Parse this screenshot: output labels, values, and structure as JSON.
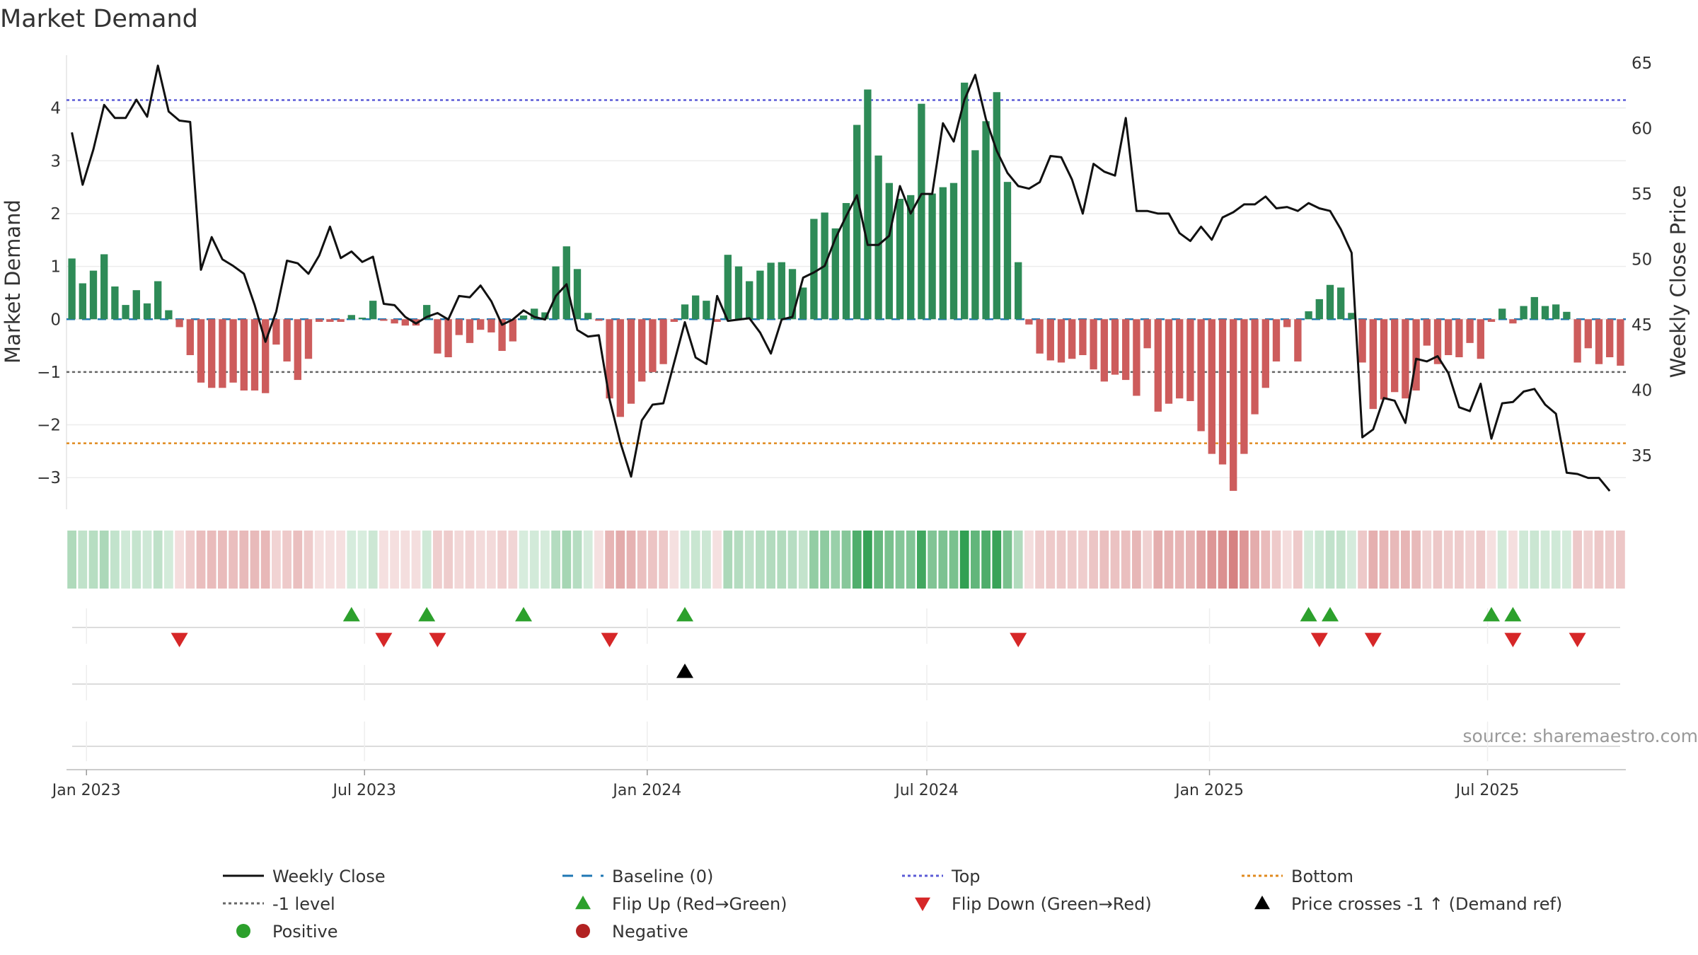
{
  "chart_data": {
    "type": "bar",
    "title": "Market Demand",
    "ylabel_left": "Market Demand",
    "ylabel_right": "Weekly Close Price",
    "source": "source: sharemaestro.com",
    "x_start": "2022-12-19",
    "x_end": "2025-09-29",
    "weeks": 146,
    "ylim_left": [
      -3.6,
      5.0
    ],
    "ylim_right": [
      30.9,
      65.6
    ],
    "left_ticks": [
      {
        "v": 4,
        "label": "4"
      },
      {
        "v": 3,
        "label": "3"
      },
      {
        "v": 2,
        "label": "2"
      },
      {
        "v": 1,
        "label": "1"
      },
      {
        "v": 0,
        "label": "0"
      },
      {
        "v": -1,
        "label": "−1"
      },
      {
        "v": -2,
        "label": "−2"
      },
      {
        "v": -3,
        "label": "−3"
      }
    ],
    "right_ticks": [
      {
        "v": 65,
        "label": "65"
      },
      {
        "v": 60,
        "label": "60"
      },
      {
        "v": 55,
        "label": "55"
      },
      {
        "v": 50,
        "label": "50"
      },
      {
        "v": 45,
        "label": "45"
      },
      {
        "v": 40,
        "label": "40"
      },
      {
        "v": 35,
        "label": "35"
      }
    ],
    "x_ticks": [
      {
        "date": "2023-01-01",
        "label": "Jan 2023"
      },
      {
        "date": "2023-07-01",
        "label": "Jul 2023"
      },
      {
        "date": "2024-01-01",
        "label": "Jan 2024"
      },
      {
        "date": "2024-07-01",
        "label": "Jul 2024"
      },
      {
        "date": "2025-01-01",
        "label": "Jan 2025"
      },
      {
        "date": "2025-07-01",
        "label": "Jul 2025"
      }
    ],
    "reference_lines": {
      "top": 4.15,
      "minus_one": -1,
      "bottom": -2.35,
      "baseline": 0
    },
    "demand": [
      1.15,
      0.68,
      0.92,
      1.23,
      0.62,
      0.27,
      0.55,
      0.3,
      0.72,
      0.17,
      -0.15,
      -0.68,
      -1.2,
      -1.3,
      -1.3,
      -1.2,
      -1.35,
      -1.35,
      -1.4,
      -0.48,
      -0.8,
      -1.15,
      -0.75,
      -0.05,
      -0.05,
      -0.05,
      0.08,
      0.03,
      0.35,
      -0.03,
      -0.08,
      -0.12,
      -0.12,
      0.27,
      -0.65,
      -0.72,
      -0.3,
      -0.45,
      -0.2,
      -0.25,
      -0.6,
      -0.42,
      0.07,
      0.2,
      0.13,
      1.0,
      1.38,
      0.95,
      0.12,
      -0.03,
      -1.5,
      -1.85,
      -1.6,
      -1.18,
      -1.0,
      -0.85,
      -0.05,
      0.28,
      0.45,
      0.35,
      -0.05,
      1.22,
      1.0,
      0.72,
      0.92,
      1.07,
      1.08,
      0.95,
      0.6,
      1.9,
      2.02,
      1.72,
      2.2,
      3.68,
      4.35,
      3.1,
      2.58,
      2.28,
      2.35,
      4.08,
      2.38,
      2.5,
      2.58,
      4.48,
      3.2,
      3.75,
      4.3,
      2.6,
      1.08,
      -0.1,
      -0.65,
      -0.78,
      -0.82,
      -0.75,
      -0.68,
      -0.95,
      -1.18,
      -1.05,
      -1.15,
      -1.45,
      -0.55,
      -1.75,
      -1.6,
      -1.5,
      -1.55,
      -2.12,
      -2.55,
      -2.75,
      -3.25,
      -2.55,
      -1.8,
      -1.3,
      -0.8,
      -0.15,
      -0.8,
      0.15,
      0.38,
      0.65,
      0.6,
      0.12,
      -0.82,
      -1.7,
      -1.52,
      -1.38,
      -1.5,
      -1.35,
      -0.5,
      -0.85,
      -0.68,
      -0.72,
      -0.45,
      -0.75,
      -0.05,
      0.2,
      -0.08,
      0.25,
      0.42,
      0.25,
      0.28,
      0.14,
      -0.82,
      -0.55,
      -0.85,
      -0.72,
      -0.88
    ],
    "close": [
      59.7,
      55.7,
      58.4,
      61.8,
      60.8,
      60.8,
      62.2,
      60.9,
      64.8,
      61.3,
      60.6,
      60.5,
      49.2,
      51.7,
      50.0,
      49.5,
      48.9,
      46.5,
      43.7,
      46.0,
      49.9,
      49.7,
      48.9,
      50.3,
      52.5,
      50.1,
      50.6,
      49.8,
      50.2,
      46.6,
      46.5,
      45.6,
      45.1,
      45.6,
      45.9,
      45.4,
      47.2,
      47.1,
      48.0,
      46.8,
      45.0,
      45.4,
      46.1,
      45.6,
      45.4,
      47.2,
      48.1,
      44.6,
      44.1,
      44.2,
      39.3,
      36.0,
      33.4,
      37.7,
      38.9,
      39.0,
      42.1,
      45.2,
      42.5,
      42.0,
      47.2,
      45.3,
      45.4,
      45.5,
      44.4,
      42.8,
      45.4,
      45.6,
      48.6,
      49.0,
      49.5,
      51.6,
      53.3,
      54.9,
      51.1,
      51.1,
      51.8,
      55.6,
      53.5,
      55.0,
      55.0,
      60.4,
      59.0,
      62.2,
      64.1,
      60.7,
      58.3,
      56.6,
      55.6,
      55.4,
      55.9,
      57.9,
      57.8,
      56.1,
      53.5,
      57.3,
      56.7,
      56.4,
      60.8,
      53.7,
      53.7,
      53.5,
      53.5,
      52.0,
      51.4,
      52.5,
      51.5,
      53.2,
      53.6,
      54.2,
      54.2,
      54.8,
      53.9,
      54.0,
      53.7,
      54.3,
      53.9,
      53.7,
      52.3,
      50.5,
      36.4,
      37.0,
      39.4,
      39.2,
      37.5,
      42.4,
      42.2,
      42.6,
      41.3,
      38.7,
      38.4,
      40.5,
      36.3,
      39.0,
      39.1,
      39.9,
      40.1,
      38.9,
      38.2,
      33.7,
      33.6,
      33.3,
      33.3,
      32.3
    ],
    "flips_up": [
      26,
      33,
      42,
      57,
      115,
      117,
      132,
      134
    ],
    "flips_down": [
      10,
      29,
      34,
      50,
      88,
      116,
      121,
      134,
      140
    ],
    "price_cross_up": [
      57
    ],
    "legend": [
      {
        "label": "Weekly Close",
        "kind": "line-solid",
        "color": "#111111"
      },
      {
        "label": "Baseline (0)",
        "kind": "line-dash",
        "color": "#1f77b4"
      },
      {
        "label": "Top",
        "kind": "line-dot",
        "color": "#5b5bd6"
      },
      {
        "label": "Bottom",
        "kind": "line-dot",
        "color": "#e08a1e"
      },
      {
        "label": "-1 level",
        "kind": "line-dot",
        "color": "#666666"
      },
      {
        "label": "Flip Up (Red→Green)",
        "kind": "tri-up",
        "color": "#2ca02c"
      },
      {
        "label": "Flip Down (Green→Red)",
        "kind": "tri-down",
        "color": "#d62728"
      },
      {
        "label": "Price crosses -1 ↑ (Demand ref)",
        "kind": "tri-up",
        "color": "#000000"
      },
      {
        "label": "Positive",
        "kind": "dot",
        "color": "#2ca02c"
      },
      {
        "label": "Negative",
        "kind": "dot",
        "color": "#b22222"
      }
    ],
    "colors": {
      "positive_bar": "#2e8b57",
      "negative_bar": "#cd5c5c",
      "close_line": "#111111",
      "top_line": "#5b5bd6",
      "bottom_line": "#e08a1e",
      "minus_one_line": "#666666",
      "baseline": "#1f77b4",
      "flip_up": "#2ca02c",
      "flip_down": "#d62728",
      "cross_marker": "#000000"
    }
  }
}
